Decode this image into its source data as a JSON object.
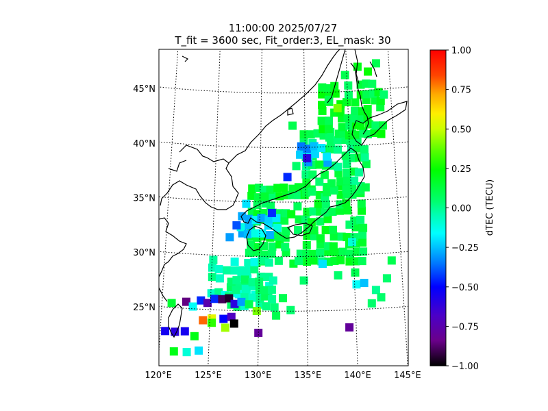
{
  "chart_data": {
    "type": "heatmap",
    "title_line1": "11:00:00 2025/07/27",
    "title_line2": "T_fit = 3600 sec, Fit_order:3, EL_mask: 30",
    "projection": "map",
    "xlim": [
      120,
      145
    ],
    "ylim": [
      20,
      49
    ],
    "x_ticks": [
      120,
      125,
      130,
      135,
      140,
      145
    ],
    "x_tick_labels": [
      "120°E",
      "125°E",
      "130°E",
      "135°E",
      "140°E",
      "145°E"
    ],
    "y_ticks": [
      25,
      30,
      35,
      40,
      45
    ],
    "y_tick_labels": [
      "25°N",
      "30°N",
      "35°N",
      "40°N",
      "45°N"
    ],
    "grid": true,
    "colorbar": {
      "label": "dTEC (TECU)",
      "min": -1.0,
      "max": 1.0,
      "colormap": "nipy_spectral",
      "ticks": [
        1.0,
        0.75,
        0.5,
        0.25,
        0.0,
        -0.25,
        -0.5,
        -0.75,
        -1.0
      ],
      "tick_labels": [
        "1.00",
        "0.75",
        "0.50",
        "0.25",
        "0.00",
        "−0.25",
        "−0.50",
        "−0.75",
        "−1.00"
      ]
    },
    "regions": [
      {
        "lon": [
          129,
          141
        ],
        "lat": [
          29.5,
          36.5
        ],
        "value": 0.12
      },
      {
        "lon": [
          135,
          142
        ],
        "lat": [
          36,
          41.5
        ],
        "value": 0.08
      },
      {
        "lon": [
          137,
          144
        ],
        "lat": [
          41,
          46
        ],
        "value": 0.15
      },
      {
        "lon": [
          125,
          131
        ],
        "lat": [
          26.5,
          30
        ],
        "value": -0.05
      },
      {
        "lon": [
          127,
          132
        ],
        "lat": [
          25.5,
          28
        ],
        "value": 0.0
      },
      {
        "lon": [
          128,
          132
        ],
        "lat": [
          32,
          34
        ],
        "value": -0.2
      },
      {
        "lon": [
          134.5,
          138
        ],
        "lat": [
          38.5,
          40
        ],
        "value": -0.28
      }
    ],
    "points": [
      {
        "lon": 120.5,
        "lat": 22.8,
        "value": -0.55
      },
      {
        "lon": 121.5,
        "lat": 22.8,
        "value": -0.6
      },
      {
        "lon": 122.5,
        "lat": 22.9,
        "value": -0.55
      },
      {
        "lon": 123.5,
        "lat": 22.5,
        "value": 0.2
      },
      {
        "lon": 121.5,
        "lat": 21.0,
        "value": 0.2
      },
      {
        "lon": 122.8,
        "lat": 21.0,
        "value": -0.1
      },
      {
        "lon": 124.0,
        "lat": 21.2,
        "value": -0.2
      },
      {
        "lon": 124.3,
        "lat": 24.0,
        "value": 0.8
      },
      {
        "lon": 125.2,
        "lat": 24.2,
        "value": 0.55
      },
      {
        "lon": 125.2,
        "lat": 23.8,
        "value": 0.3
      },
      {
        "lon": 126.4,
        "lat": 24.2,
        "value": -0.5
      },
      {
        "lon": 127.2,
        "lat": 24.4,
        "value": -0.7
      },
      {
        "lon": 127.5,
        "lat": 23.8,
        "value": -1.0
      },
      {
        "lon": 126.6,
        "lat": 23.4,
        "value": 0.45
      },
      {
        "lon": 124.0,
        "lat": 25.8,
        "value": -0.45
      },
      {
        "lon": 124.7,
        "lat": 25.6,
        "value": -0.75
      },
      {
        "lon": 125.4,
        "lat": 26.0,
        "value": -0.45
      },
      {
        "lon": 126.2,
        "lat": 26.0,
        "value": -0.9
      },
      {
        "lon": 126.9,
        "lat": 26.1,
        "value": -0.95
      },
      {
        "lon": 127.5,
        "lat": 25.6,
        "value": -0.6
      },
      {
        "lon": 128.2,
        "lat": 25.8,
        "value": -0.3
      },
      {
        "lon": 122.5,
        "lat": 25.6,
        "value": -0.85
      },
      {
        "lon": 121.0,
        "lat": 25.4,
        "value": 0.15
      },
      {
        "lon": 123.2,
        "lat": 25.2,
        "value": -0.15
      },
      {
        "lon": 129.8,
        "lat": 25.0,
        "value": 0.4
      },
      {
        "lon": 129.0,
        "lat": 25.6,
        "value": 0.1
      },
      {
        "lon": 130.0,
        "lat": 23.0,
        "value": -0.8
      },
      {
        "lon": 131.8,
        "lat": 24.6,
        "value": 0.1
      },
      {
        "lon": 133.3,
        "lat": 25.1,
        "value": 0.05
      },
      {
        "lon": 132.5,
        "lat": 26.2,
        "value": 0.1
      },
      {
        "lon": 134.7,
        "lat": 27.8,
        "value": 0.05
      },
      {
        "lon": 136.7,
        "lat": 29.3,
        "value": -0.2
      },
      {
        "lon": 138.3,
        "lat": 28.2,
        "value": 0.05
      },
      {
        "lon": 139.3,
        "lat": 23.4,
        "value": -0.8
      },
      {
        "lon": 140.1,
        "lat": 28.4,
        "value": 0.1
      },
      {
        "lon": 140.2,
        "lat": 27.3,
        "value": -0.15
      },
      {
        "lon": 141.0,
        "lat": 27.4,
        "value": -0.25
      },
      {
        "lon": 141.7,
        "lat": 25.5,
        "value": 0.05
      },
      {
        "lon": 142.2,
        "lat": 26.7,
        "value": 0.0
      },
      {
        "lon": 142.7,
        "lat": 26.0,
        "value": 0.05
      },
      {
        "lon": 143.4,
        "lat": 27.7,
        "value": 0.05
      },
      {
        "lon": 144.0,
        "lat": 29.3,
        "value": 0.1
      },
      {
        "lon": 139.9,
        "lat": 31.2,
        "value": -0.1
      },
      {
        "lon": 139.7,
        "lat": 32.8,
        "value": 0.05
      },
      {
        "lon": 131.3,
        "lat": 34.0,
        "value": -0.45
      },
      {
        "lon": 128.5,
        "lat": 34.8,
        "value": -0.2
      },
      {
        "lon": 130.5,
        "lat": 35.5,
        "value": 0.15
      },
      {
        "lon": 133.0,
        "lat": 37.3,
        "value": -0.45
      },
      {
        "lon": 134.0,
        "lat": 38.3,
        "value": 0.05
      },
      {
        "lon": 135.2,
        "lat": 39.0,
        "value": -0.6
      },
      {
        "lon": 133.6,
        "lat": 42.0,
        "value": 0.1
      },
      {
        "lon": 138.8,
        "lat": 43.5,
        "value": 0.4
      },
      {
        "lon": 137.8,
        "lat": 44.3,
        "value": 0.1
      },
      {
        "lon": 141.3,
        "lat": 47.2,
        "value": 0.2
      },
      {
        "lon": 142.5,
        "lat": 46.7,
        "value": 0.25
      },
      {
        "lon": 143.5,
        "lat": 47.4,
        "value": 0.1
      },
      {
        "lon": 144.2,
        "lat": 44.5,
        "value": 0.05
      },
      {
        "lon": 139.8,
        "lat": 46.5,
        "value": 0.1
      },
      {
        "lon": 126.8,
        "lat": 31.7,
        "value": -0.3
      },
      {
        "lon": 127.5,
        "lat": 32.8,
        "value": -0.4
      }
    ]
  }
}
